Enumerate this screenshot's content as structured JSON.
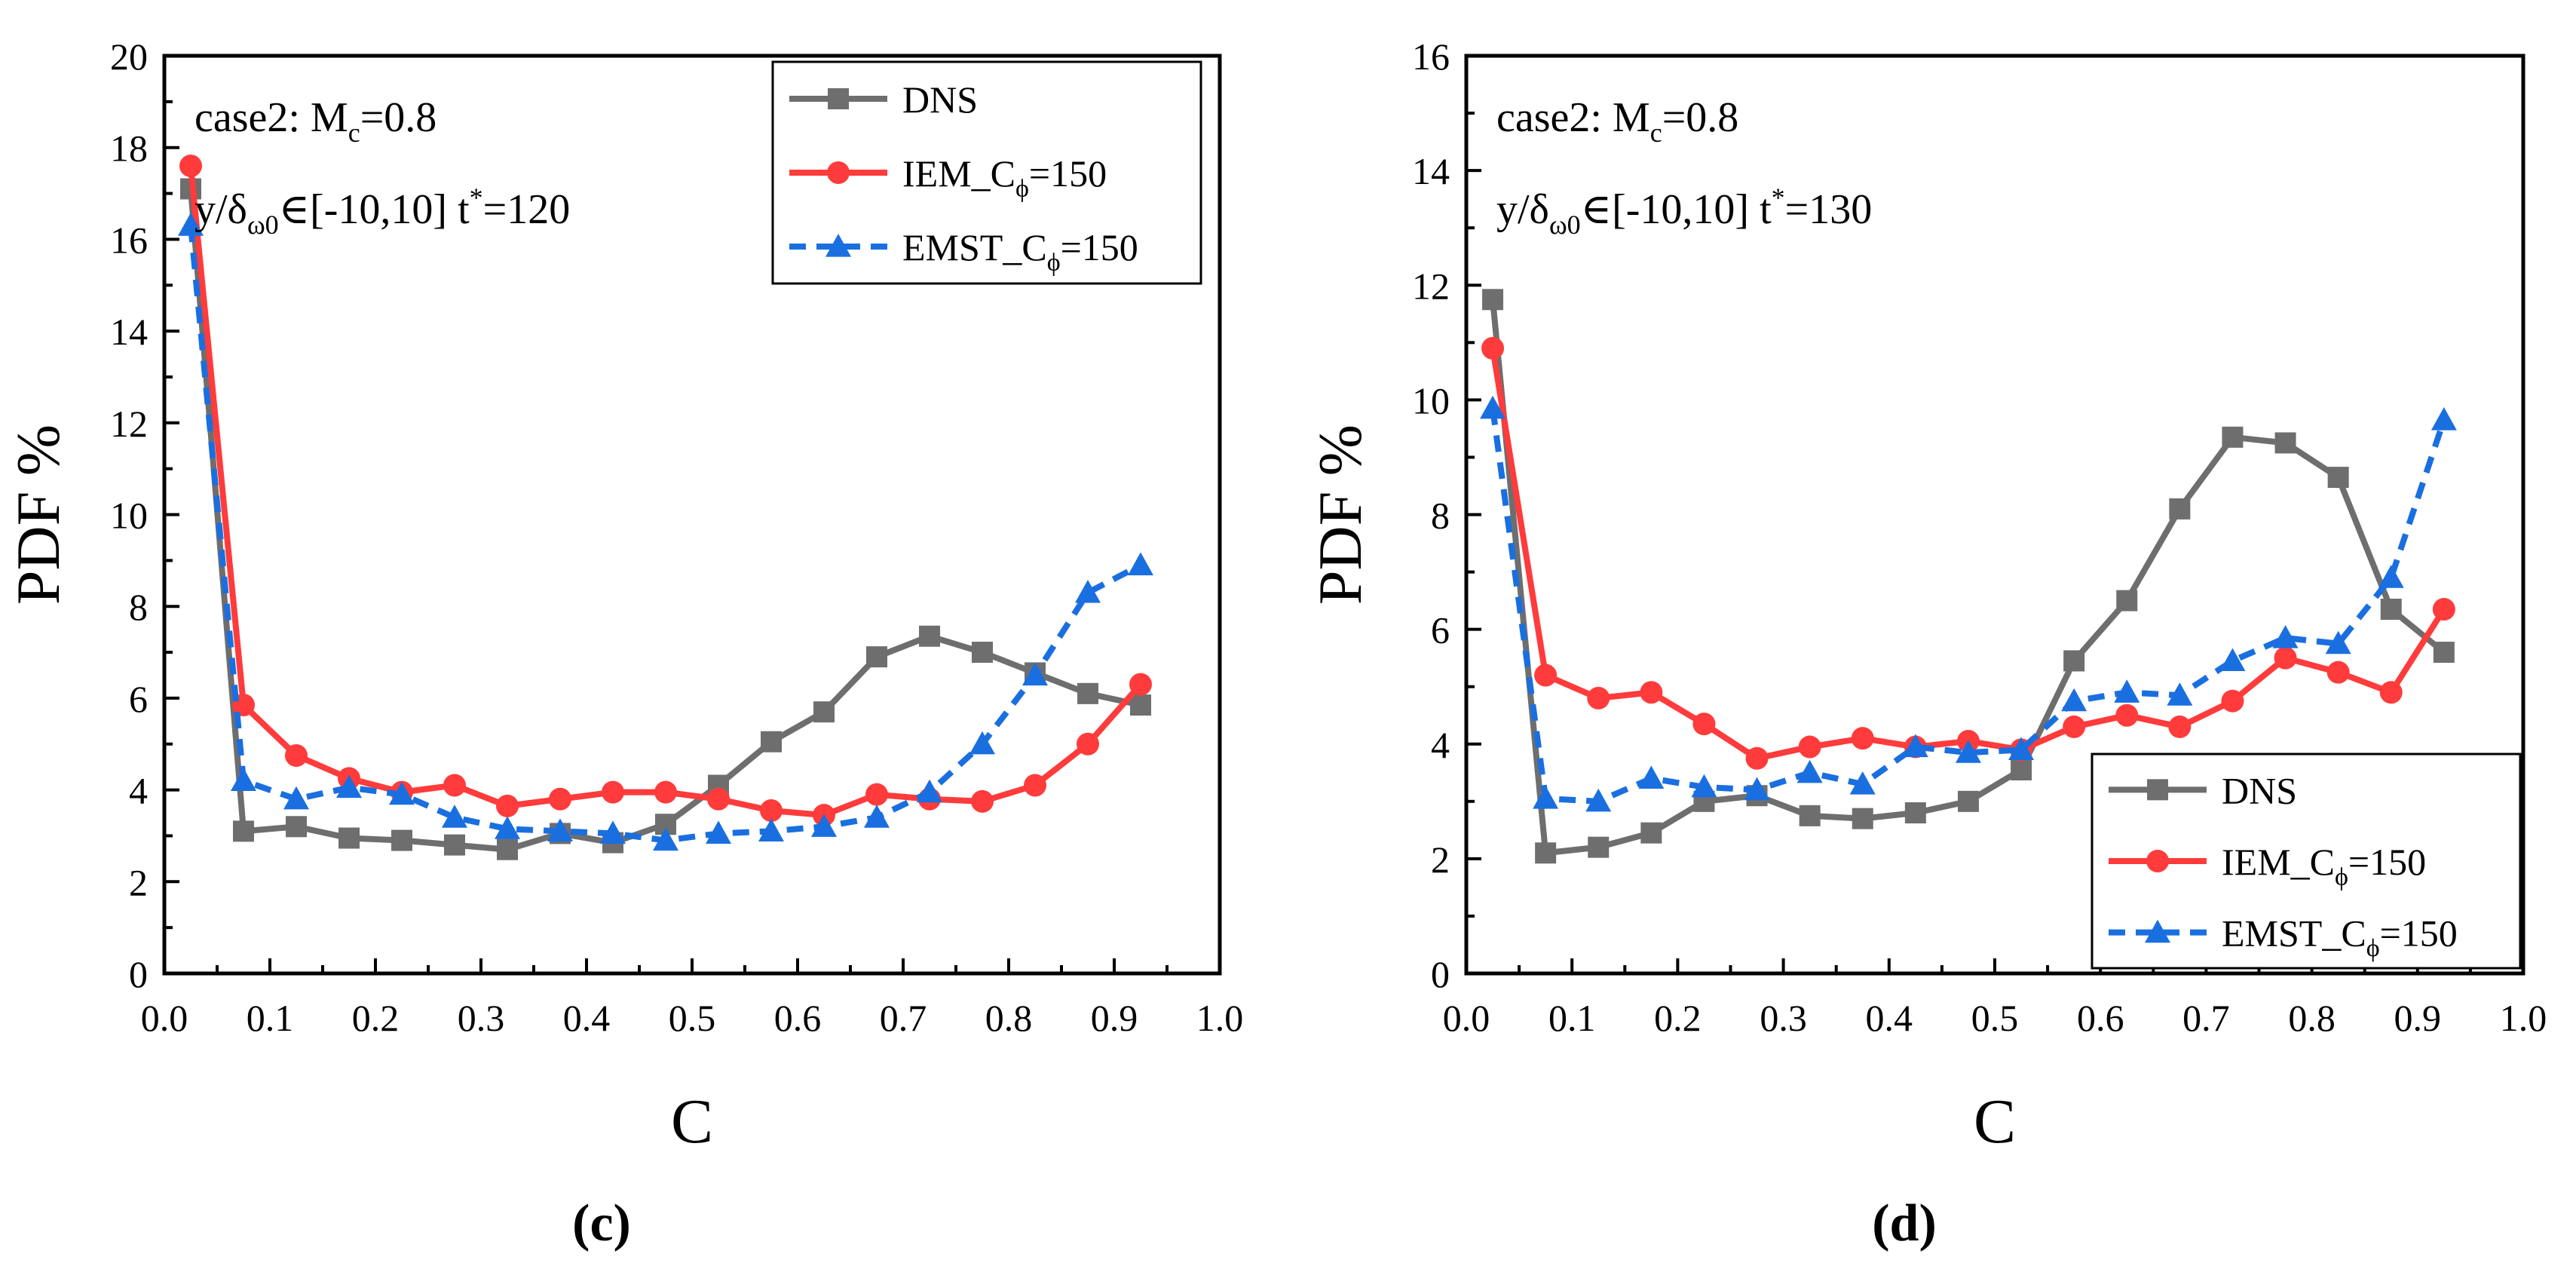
{
  "chart_data": [
    {
      "id": "c",
      "type": "line",
      "panel_label": "(c)",
      "xlabel": "C",
      "ylabel": "PDF %",
      "xlim": [
        0.0,
        1.0
      ],
      "ylim": [
        0,
        20
      ],
      "xticks": [
        0.0,
        0.1,
        0.2,
        0.3,
        0.4,
        0.5,
        0.6,
        0.7,
        0.8,
        0.9,
        1.0
      ],
      "yticks": [
        0,
        2,
        4,
        6,
        8,
        10,
        12,
        14,
        16,
        18,
        20
      ],
      "xtick_labels": [
        "0.0",
        "0.1",
        "0.2",
        "0.3",
        "0.4",
        "0.5",
        "0.6",
        "0.7",
        "0.8",
        "0.9",
        "1.0"
      ],
      "ytick_labels": [
        "0",
        "2",
        "4",
        "6",
        "8",
        "10",
        "12",
        "14",
        "16",
        "18",
        "20"
      ],
      "annotations": {
        "case_label": "case2: M",
        "case_sub": "c",
        "case_value": "=0.8",
        "range_prefix": "y/δ",
        "range_sub": "ω0",
        "range_value": "∈[-10,10]",
        "time_prefix": "t",
        "time_sup": "*",
        "time_value": "=120"
      },
      "legend_position": "top-right",
      "x": [
        0.025,
        0.075,
        0.125,
        0.175,
        0.225,
        0.275,
        0.325,
        0.375,
        0.425,
        0.475,
        0.525,
        0.575,
        0.625,
        0.675,
        0.725,
        0.775,
        0.825,
        0.875,
        0.925
      ],
      "series": [
        {
          "name": "DNS",
          "legend_main": "DNS",
          "legend_sub": "",
          "legend_tail": "",
          "color": "#6e6e6e",
          "marker": "square",
          "dash": "solid",
          "values": [
            17.1,
            3.1,
            3.2,
            2.95,
            2.9,
            2.8,
            2.7,
            3.05,
            2.85,
            3.25,
            4.1,
            5.05,
            5.7,
            6.9,
            7.35,
            7.0,
            6.55,
            6.1,
            5.85
          ]
        },
        {
          "name": "IEM_Cϕ=150",
          "legend_main": "IEM_C",
          "legend_sub": "ϕ",
          "legend_tail": "=150",
          "color": "#ff3b3b",
          "marker": "circle",
          "dash": "solid",
          "values": [
            17.6,
            5.85,
            4.75,
            4.25,
            3.95,
            4.1,
            3.65,
            3.8,
            3.95,
            3.95,
            3.8,
            3.55,
            3.45,
            3.9,
            3.8,
            3.75,
            4.1,
            5.0,
            6.3
          ]
        },
        {
          "name": "EMST_Cϕ=150",
          "legend_main": "EMST_C",
          "legend_sub": "ϕ",
          "legend_tail": "=150",
          "color": "#1a6fe0",
          "marker": "triangle",
          "dash": "dashed",
          "values": [
            16.3,
            4.2,
            3.8,
            4.05,
            3.9,
            3.4,
            3.15,
            3.1,
            3.05,
            2.9,
            3.05,
            3.1,
            3.2,
            3.4,
            3.95,
            5.0,
            6.5,
            8.3,
            8.9
          ]
        }
      ]
    },
    {
      "id": "d",
      "type": "line",
      "panel_label": "(d)",
      "xlabel": "C",
      "ylabel": "PDF %",
      "xlim": [
        0.0,
        1.0
      ],
      "ylim": [
        0,
        16
      ],
      "xticks": [
        0.0,
        0.1,
        0.2,
        0.3,
        0.4,
        0.5,
        0.6,
        0.7,
        0.8,
        0.9,
        1.0
      ],
      "yticks": [
        0,
        2,
        4,
        6,
        8,
        10,
        12,
        14,
        16
      ],
      "xtick_labels": [
        "0.0",
        "0.1",
        "0.2",
        "0.3",
        "0.4",
        "0.5",
        "0.6",
        "0.7",
        "0.8",
        "0.9",
        "1.0"
      ],
      "ytick_labels": [
        "0",
        "2",
        "4",
        "6",
        "8",
        "10",
        "12",
        "14",
        "16"
      ],
      "annotations": {
        "case_label": "case2: M",
        "case_sub": "c",
        "case_value": "=0.8",
        "range_prefix": "y/δ",
        "range_sub": "ω0",
        "range_value": "∈[-10,10]",
        "time_prefix": "t",
        "time_sup": "*",
        "time_value": "=130"
      },
      "legend_position": "bottom-right",
      "x": [
        0.025,
        0.075,
        0.125,
        0.175,
        0.225,
        0.275,
        0.325,
        0.375,
        0.425,
        0.475,
        0.525,
        0.575,
        0.625,
        0.675,
        0.725,
        0.775,
        0.825,
        0.875,
        0.925
      ],
      "series": [
        {
          "name": "DNS",
          "legend_main": "DNS",
          "legend_sub": "",
          "legend_tail": "",
          "color": "#6e6e6e",
          "marker": "square",
          "dash": "solid",
          "values": [
            11.75,
            2.1,
            2.2,
            2.45,
            3.0,
            3.1,
            2.75,
            2.7,
            2.8,
            3.0,
            3.55,
            5.45,
            6.5,
            8.1,
            9.35,
            9.25,
            8.65,
            6.35,
            5.6
          ]
        },
        {
          "name": "IEM_Cϕ=150",
          "legend_main": "IEM_C",
          "legend_sub": "ϕ",
          "legend_tail": "=150",
          "color": "#ff3b3b",
          "marker": "circle",
          "dash": "solid",
          "values": [
            10.9,
            5.2,
            4.8,
            4.9,
            4.35,
            3.75,
            3.95,
            4.1,
            3.95,
            4.05,
            3.9,
            4.3,
            4.5,
            4.3,
            4.75,
            5.5,
            5.25,
            4.9,
            6.35
          ]
        },
        {
          "name": "EMST_Cϕ=150",
          "legend_main": "EMST_C",
          "legend_sub": "ϕ",
          "legend_tail": "=150",
          "color": "#1a6fe0",
          "marker": "triangle",
          "dash": "dashed",
          "values": [
            9.85,
            3.05,
            3.0,
            3.4,
            3.25,
            3.2,
            3.5,
            3.3,
            3.95,
            3.85,
            3.9,
            4.75,
            4.9,
            4.85,
            5.45,
            5.85,
            5.75,
            6.9,
            9.65
          ]
        }
      ]
    }
  ]
}
